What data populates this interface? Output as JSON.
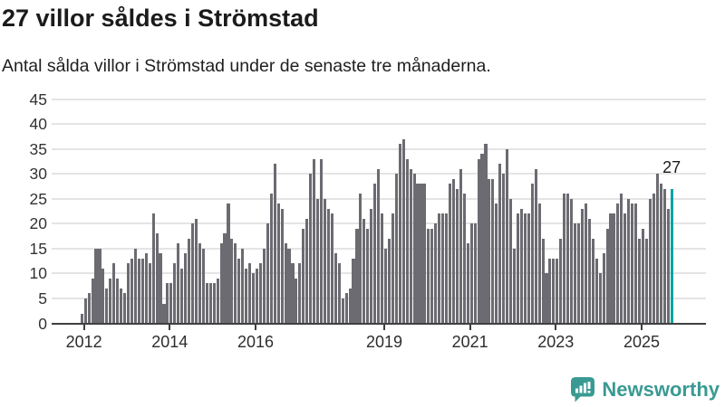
{
  "header": {
    "title": "27 villor såldes i Strömstad",
    "subtitle": "Antal sålda villor i Strömstad under de senaste tre månaderna."
  },
  "footer": {
    "brand": "Newsworthy"
  },
  "colors": {
    "bar": "#6b6b71",
    "highlight": "#00a3a3",
    "gridline": "#e4e4e4",
    "axis": "#3f3f3f",
    "brand_teal": "#3a9a93",
    "text_dark": "#1b1b1b"
  },
  "chart_data": {
    "type": "bar",
    "title": "27 villor såldes i Strömstad",
    "subtitle": "Antal sålda villor i Strömstad under de senaste tre månaderna.",
    "xlabel": "",
    "ylabel": "",
    "grid": "horizontal",
    "legend": "none",
    "ylim": [
      0,
      45
    ],
    "yticks": [
      0,
      5,
      10,
      15,
      20,
      25,
      30,
      35,
      40,
      45
    ],
    "x_ticks": [
      {
        "label": "2012",
        "month_index": 1
      },
      {
        "label": "2014",
        "month_index": 25
      },
      {
        "label": "2016",
        "month_index": 49
      },
      {
        "label": "2019",
        "month_index": 85
      },
      {
        "label": "2021",
        "month_index": 109
      },
      {
        "label": "2023",
        "month_index": 133
      },
      {
        "label": "2025",
        "month_index": 157
      }
    ],
    "values": [
      2,
      5,
      6,
      9,
      15,
      15,
      11,
      7,
      9,
      12,
      9,
      7,
      6,
      12,
      13,
      15,
      13,
      13,
      14,
      12,
      22,
      18,
      14,
      4,
      8,
      8,
      12,
      16,
      11,
      14,
      17,
      20,
      21,
      16,
      15,
      8,
      8,
      8,
      9,
      16,
      18,
      24,
      17,
      16,
      13,
      15,
      11,
      12,
      10,
      11,
      12,
      15,
      20,
      26,
      32,
      24,
      23,
      16,
      15,
      12,
      9,
      12,
      19,
      21,
      30,
      33,
      25,
      33,
      25,
      23,
      22,
      14,
      12,
      5,
      6,
      7,
      13,
      19,
      26,
      21,
      19,
      23,
      28,
      31,
      22,
      15,
      17,
      22,
      30,
      36,
      37,
      33,
      31,
      30,
      28,
      28,
      28,
      19,
      19,
      20,
      22,
      22,
      22,
      28,
      29,
      27,
      31,
      26,
      16,
      20,
      20,
      33,
      34,
      36,
      29,
      29,
      24,
      32,
      30,
      35,
      25,
      15,
      22,
      23,
      22,
      22,
      28,
      31,
      24,
      17,
      10,
      13,
      13,
      13,
      17,
      26,
      26,
      25,
      20,
      20,
      23,
      24,
      21,
      17,
      13,
      10,
      14,
      19,
      22,
      22,
      24,
      26,
      22,
      25,
      24,
      24,
      17,
      19,
      17,
      25,
      26,
      30,
      28,
      27,
      23,
      27
    ],
    "highlight": {
      "index": 165,
      "value": 27,
      "label": "27"
    }
  }
}
